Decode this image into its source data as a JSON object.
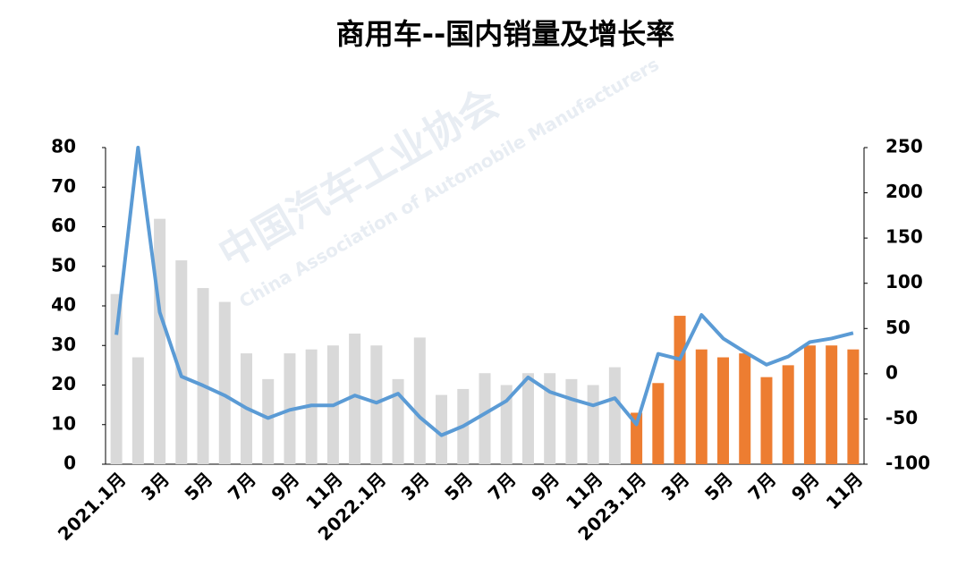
{
  "chart_data": {
    "type": "bar_line",
    "title": "商用车--国内销量及增长率",
    "watermark": [
      "中国汽车工业协会",
      "China Association of Automobile Manufacturers"
    ],
    "categories": [
      "2021.1月",
      null,
      "3月",
      null,
      "5月",
      null,
      "7月",
      null,
      "9月",
      null,
      "11月",
      null,
      "2022.1月",
      null,
      "3月",
      null,
      "5月",
      null,
      "7月",
      null,
      "9月",
      null,
      "11月",
      null,
      "2023.1月",
      null,
      "3月",
      null,
      "5月",
      null,
      "7月",
      null,
      "9月",
      null,
      "11月"
    ],
    "series": [
      {
        "type": "bar",
        "color": "#d9d9d9",
        "values": [
          43,
          27,
          62,
          51.5,
          44.5,
          41,
          28,
          21.5,
          28,
          29,
          30,
          33,
          30,
          21.5,
          32,
          17.5,
          19,
          23,
          20,
          23,
          23,
          21.5,
          20,
          24.5,
          null,
          null,
          null,
          null,
          null,
          null,
          null,
          null,
          null,
          null,
          null
        ]
      },
      {
        "type": "bar",
        "color": "#ed7d31",
        "values": [
          null,
          null,
          null,
          null,
          null,
          null,
          null,
          null,
          null,
          null,
          null,
          null,
          null,
          null,
          null,
          null,
          null,
          null,
          null,
          null,
          null,
          null,
          null,
          null,
          13,
          20.5,
          37.5,
          29,
          27,
          28,
          22,
          25,
          30,
          30,
          29
        ]
      },
      {
        "type": "line",
        "axis": "y2",
        "color": "#5b9bd5",
        "values": [
          43,
          250,
          68,
          -3,
          -13,
          -24,
          -38,
          -49,
          -40,
          -35,
          -35,
          -24,
          -32,
          -22,
          -48,
          -68,
          -58,
          -44,
          -30,
          -4,
          -20,
          -28,
          -35,
          -27,
          -56,
          22,
          16,
          65,
          39,
          24,
          10,
          19,
          35,
          39,
          45
        ]
      }
    ],
    "ylim": [
      0,
      80
    ],
    "yticks": [
      0,
      10,
      20,
      30,
      40,
      50,
      60,
      70,
      80
    ],
    "y2lim": [
      -100,
      250
    ],
    "y2ticks": [
      -100,
      -50,
      0,
      50,
      100,
      150,
      200,
      250
    ]
  }
}
